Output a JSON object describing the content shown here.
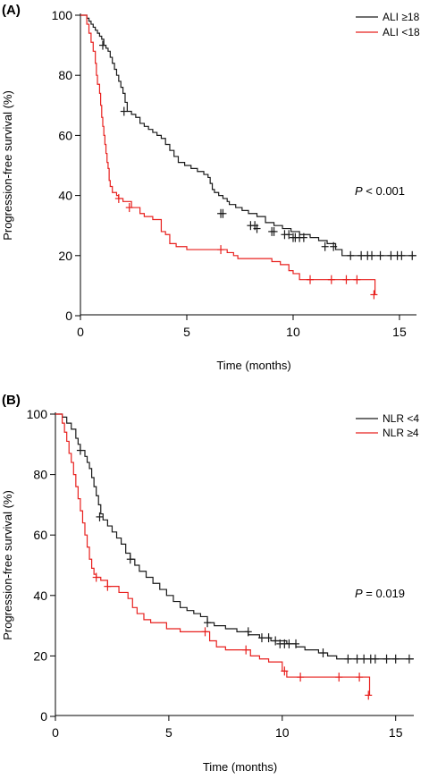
{
  "chart_data": [
    {
      "type": "line",
      "panel_label": "(A)",
      "xlabel": "Time (months)",
      "ylabel": "Progression-free survival (%)",
      "xlim": [
        0,
        16
      ],
      "ylim": [
        0,
        100
      ],
      "xticks": [
        "0",
        "5",
        "10",
        "15"
      ],
      "yticks": [
        "0",
        "20",
        "40",
        "60",
        "80",
        "100"
      ],
      "annotation": {
        "italic": "P",
        "rest": " < 0.001"
      },
      "legend_position": "top-right",
      "series": [
        {
          "name": "ALI ≥18",
          "color": "#1a1a1a",
          "steps": [
            [
              0,
              100
            ],
            [
              0.2,
              100
            ],
            [
              0.3,
              99
            ],
            [
              0.4,
              98
            ],
            [
              0.5,
              97
            ],
            [
              0.6,
              96
            ],
            [
              0.7,
              95
            ],
            [
              0.8,
              94
            ],
            [
              0.9,
              93
            ],
            [
              1.0,
              92
            ],
            [
              1.1,
              90
            ],
            [
              1.2,
              89
            ],
            [
              1.3,
              88
            ],
            [
              1.4,
              86
            ],
            [
              1.5,
              84
            ],
            [
              1.6,
              82
            ],
            [
              1.7,
              80
            ],
            [
              1.8,
              78
            ],
            [
              1.9,
              76
            ],
            [
              2.0,
              74
            ],
            [
              2.1,
              71
            ],
            [
              2.2,
              68
            ],
            [
              2.4,
              67
            ],
            [
              2.6,
              66
            ],
            [
              2.8,
              64
            ],
            [
              3.0,
              63
            ],
            [
              3.2,
              62
            ],
            [
              3.4,
              61
            ],
            [
              3.6,
              60
            ],
            [
              3.8,
              59
            ],
            [
              4.0,
              57
            ],
            [
              4.2,
              55
            ],
            [
              4.4,
              53
            ],
            [
              4.6,
              51
            ],
            [
              4.9,
              50
            ],
            [
              5.2,
              49
            ],
            [
              5.5,
              48
            ],
            [
              5.8,
              47
            ],
            [
              6.0,
              46
            ],
            [
              6.1,
              44
            ],
            [
              6.2,
              42
            ],
            [
              6.3,
              41
            ],
            [
              6.5,
              40
            ],
            [
              6.7,
              39
            ],
            [
              6.9,
              38
            ],
            [
              7.0,
              37
            ],
            [
              7.3,
              36
            ],
            [
              7.6,
              35
            ],
            [
              7.9,
              34
            ],
            [
              8.3,
              33
            ],
            [
              8.7,
              31
            ],
            [
              9.1,
              30
            ],
            [
              9.5,
              29
            ],
            [
              9.9,
              28
            ],
            [
              10.3,
              27
            ],
            [
              10.8,
              26
            ],
            [
              11.2,
              25
            ],
            [
              11.6,
              24
            ],
            [
              12.0,
              22
            ],
            [
              12.3,
              20
            ],
            [
              15.8,
              20
            ]
          ],
          "censors": [
            [
              1.05,
              90
            ],
            [
              2.05,
              68
            ],
            [
              6.6,
              34
            ],
            [
              6.7,
              34
            ],
            [
              8.0,
              30
            ],
            [
              8.2,
              30
            ],
            [
              8.3,
              29
            ],
            [
              9.0,
              28
            ],
            [
              9.1,
              28
            ],
            [
              9.6,
              27
            ],
            [
              9.8,
              27
            ],
            [
              10.0,
              26
            ],
            [
              10.1,
              26
            ],
            [
              10.3,
              26
            ],
            [
              10.5,
              26
            ],
            [
              11.5,
              23
            ],
            [
              11.9,
              23
            ],
            [
              12.7,
              20
            ],
            [
              13.2,
              20
            ],
            [
              13.5,
              20
            ],
            [
              13.7,
              20
            ],
            [
              14.1,
              20
            ],
            [
              14.6,
              20
            ],
            [
              14.9,
              20
            ],
            [
              15.1,
              20
            ],
            [
              15.6,
              20
            ]
          ]
        },
        {
          "name": "ALI <18",
          "color": "#e8201e",
          "steps": [
            [
              0,
              100
            ],
            [
              0.3,
              97
            ],
            [
              0.4,
              94
            ],
            [
              0.5,
              91
            ],
            [
              0.6,
              88
            ],
            [
              0.7,
              84
            ],
            [
              0.75,
              80
            ],
            [
              0.8,
              77
            ],
            [
              0.9,
              74
            ],
            [
              0.95,
              70
            ],
            [
              1.0,
              66
            ],
            [
              1.05,
              63
            ],
            [
              1.1,
              60
            ],
            [
              1.15,
              57
            ],
            [
              1.2,
              54
            ],
            [
              1.25,
              51
            ],
            [
              1.3,
              49
            ],
            [
              1.35,
              45
            ],
            [
              1.4,
              43
            ],
            [
              1.5,
              41
            ],
            [
              1.7,
              40
            ],
            [
              1.8,
              39
            ],
            [
              2.0,
              38
            ],
            [
              2.4,
              36
            ],
            [
              2.8,
              34
            ],
            [
              3.0,
              33
            ],
            [
              3.4,
              32
            ],
            [
              3.8,
              28
            ],
            [
              4.0,
              27
            ],
            [
              4.2,
              24
            ],
            [
              4.5,
              23
            ],
            [
              5.0,
              22
            ],
            [
              6.0,
              22
            ],
            [
              6.9,
              21
            ],
            [
              7.2,
              20
            ],
            [
              7.4,
              19
            ],
            [
              8.0,
              19
            ],
            [
              9.0,
              18
            ],
            [
              9.4,
              17
            ],
            [
              9.8,
              15
            ],
            [
              10.0,
              14
            ],
            [
              10.3,
              12
            ],
            [
              13.7,
              12
            ],
            [
              13.85,
              7
            ]
          ],
          "censors": [
            [
              1.8,
              39
            ],
            [
              2.3,
              36
            ],
            [
              6.6,
              22
            ],
            [
              10.8,
              12
            ],
            [
              11.8,
              12
            ],
            [
              12.5,
              12
            ],
            [
              13.0,
              12
            ],
            [
              13.8,
              7
            ]
          ]
        }
      ]
    },
    {
      "type": "line",
      "panel_label": "(B)",
      "xlabel": "Time (months)",
      "ylabel": "Progression-free survival (%)",
      "xlim": [
        0,
        16
      ],
      "ylim": [
        0,
        100
      ],
      "xticks": [
        "0",
        "5",
        "10",
        "15"
      ],
      "yticks": [
        "0",
        "20",
        "40",
        "60",
        "80",
        "100"
      ],
      "annotation": {
        "italic": "P",
        "rest": " = 0.019"
      },
      "legend_position": "top-right",
      "series": [
        {
          "name": "NLR <4",
          "color": "#1a1a1a",
          "steps": [
            [
              0,
              100
            ],
            [
              0.3,
              99
            ],
            [
              0.5,
              97
            ],
            [
              0.7,
              95
            ],
            [
              0.9,
              92
            ],
            [
              1.0,
              90
            ],
            [
              1.1,
              88
            ],
            [
              1.3,
              86
            ],
            [
              1.4,
              84
            ],
            [
              1.5,
              82
            ],
            [
              1.6,
              79
            ],
            [
              1.7,
              76
            ],
            [
              1.8,
              73
            ],
            [
              1.9,
              70
            ],
            [
              2.0,
              67
            ],
            [
              2.1,
              65
            ],
            [
              2.3,
              63
            ],
            [
              2.5,
              61
            ],
            [
              2.7,
              59
            ],
            [
              2.9,
              57
            ],
            [
              3.1,
              54
            ],
            [
              3.3,
              52
            ],
            [
              3.5,
              50
            ],
            [
              3.7,
              48
            ],
            [
              4.0,
              46
            ],
            [
              4.3,
              44
            ],
            [
              4.6,
              42
            ],
            [
              4.9,
              40
            ],
            [
              5.2,
              38
            ],
            [
              5.5,
              36
            ],
            [
              5.8,
              35
            ],
            [
              6.1,
              34
            ],
            [
              6.4,
              33
            ],
            [
              6.7,
              31
            ],
            [
              7.0,
              30
            ],
            [
              7.5,
              29
            ],
            [
              8.0,
              28
            ],
            [
              8.5,
              27
            ],
            [
              9.0,
              26
            ],
            [
              9.5,
              25
            ],
            [
              10.2,
              24
            ],
            [
              10.6,
              23
            ],
            [
              11.0,
              22
            ],
            [
              11.6,
              21
            ],
            [
              12.0,
              20
            ],
            [
              12.4,
              19
            ],
            [
              15.8,
              19
            ]
          ],
          "censors": [
            [
              1.1,
              88
            ],
            [
              1.95,
              66
            ],
            [
              3.3,
              52
            ],
            [
              6.7,
              31
            ],
            [
              8.5,
              28
            ],
            [
              9.1,
              26
            ],
            [
              9.4,
              26
            ],
            [
              9.7,
              25
            ],
            [
              9.9,
              24
            ],
            [
              10.1,
              24
            ],
            [
              10.3,
              24
            ],
            [
              10.6,
              24
            ],
            [
              11.8,
              21
            ],
            [
              12.9,
              19
            ],
            [
              13.3,
              19
            ],
            [
              13.6,
              19
            ],
            [
              13.9,
              19
            ],
            [
              14.1,
              19
            ],
            [
              14.6,
              19
            ],
            [
              15.0,
              19
            ],
            [
              15.6,
              19
            ]
          ]
        },
        {
          "name": "NLR ≥4",
          "color": "#e8201e",
          "steps": [
            [
              0,
              100
            ],
            [
              0.3,
              97
            ],
            [
              0.4,
              94
            ],
            [
              0.5,
              91
            ],
            [
              0.6,
              87
            ],
            [
              0.7,
              84
            ],
            [
              0.8,
              80
            ],
            [
              0.9,
              76
            ],
            [
              1.0,
              72
            ],
            [
              1.1,
              68
            ],
            [
              1.2,
              64
            ],
            [
              1.3,
              60
            ],
            [
              1.4,
              56
            ],
            [
              1.5,
              52
            ],
            [
              1.6,
              49
            ],
            [
              1.7,
              47
            ],
            [
              1.8,
              46
            ],
            [
              2.0,
              45
            ],
            [
              2.3,
              43
            ],
            [
              2.8,
              41
            ],
            [
              3.2,
              39
            ],
            [
              3.4,
              36
            ],
            [
              3.6,
              34
            ],
            [
              3.9,
              32
            ],
            [
              4.2,
              31
            ],
            [
              4.9,
              29
            ],
            [
              5.5,
              28
            ],
            [
              6.6,
              28
            ],
            [
              6.8,
              25
            ],
            [
              7.1,
              23
            ],
            [
              7.5,
              22
            ],
            [
              8.4,
              22
            ],
            [
              8.6,
              20
            ],
            [
              9.0,
              19
            ],
            [
              9.4,
              18
            ],
            [
              10.0,
              15
            ],
            [
              10.2,
              13
            ],
            [
              13.7,
              13
            ],
            [
              13.85,
              7
            ]
          ],
          "censors": [
            [
              1.8,
              46
            ],
            [
              2.3,
              43
            ],
            [
              6.6,
              28
            ],
            [
              8.4,
              22
            ],
            [
              10.1,
              15
            ],
            [
              10.8,
              13
            ],
            [
              12.5,
              13
            ],
            [
              13.4,
              13
            ],
            [
              13.8,
              7
            ]
          ]
        }
      ]
    }
  ]
}
